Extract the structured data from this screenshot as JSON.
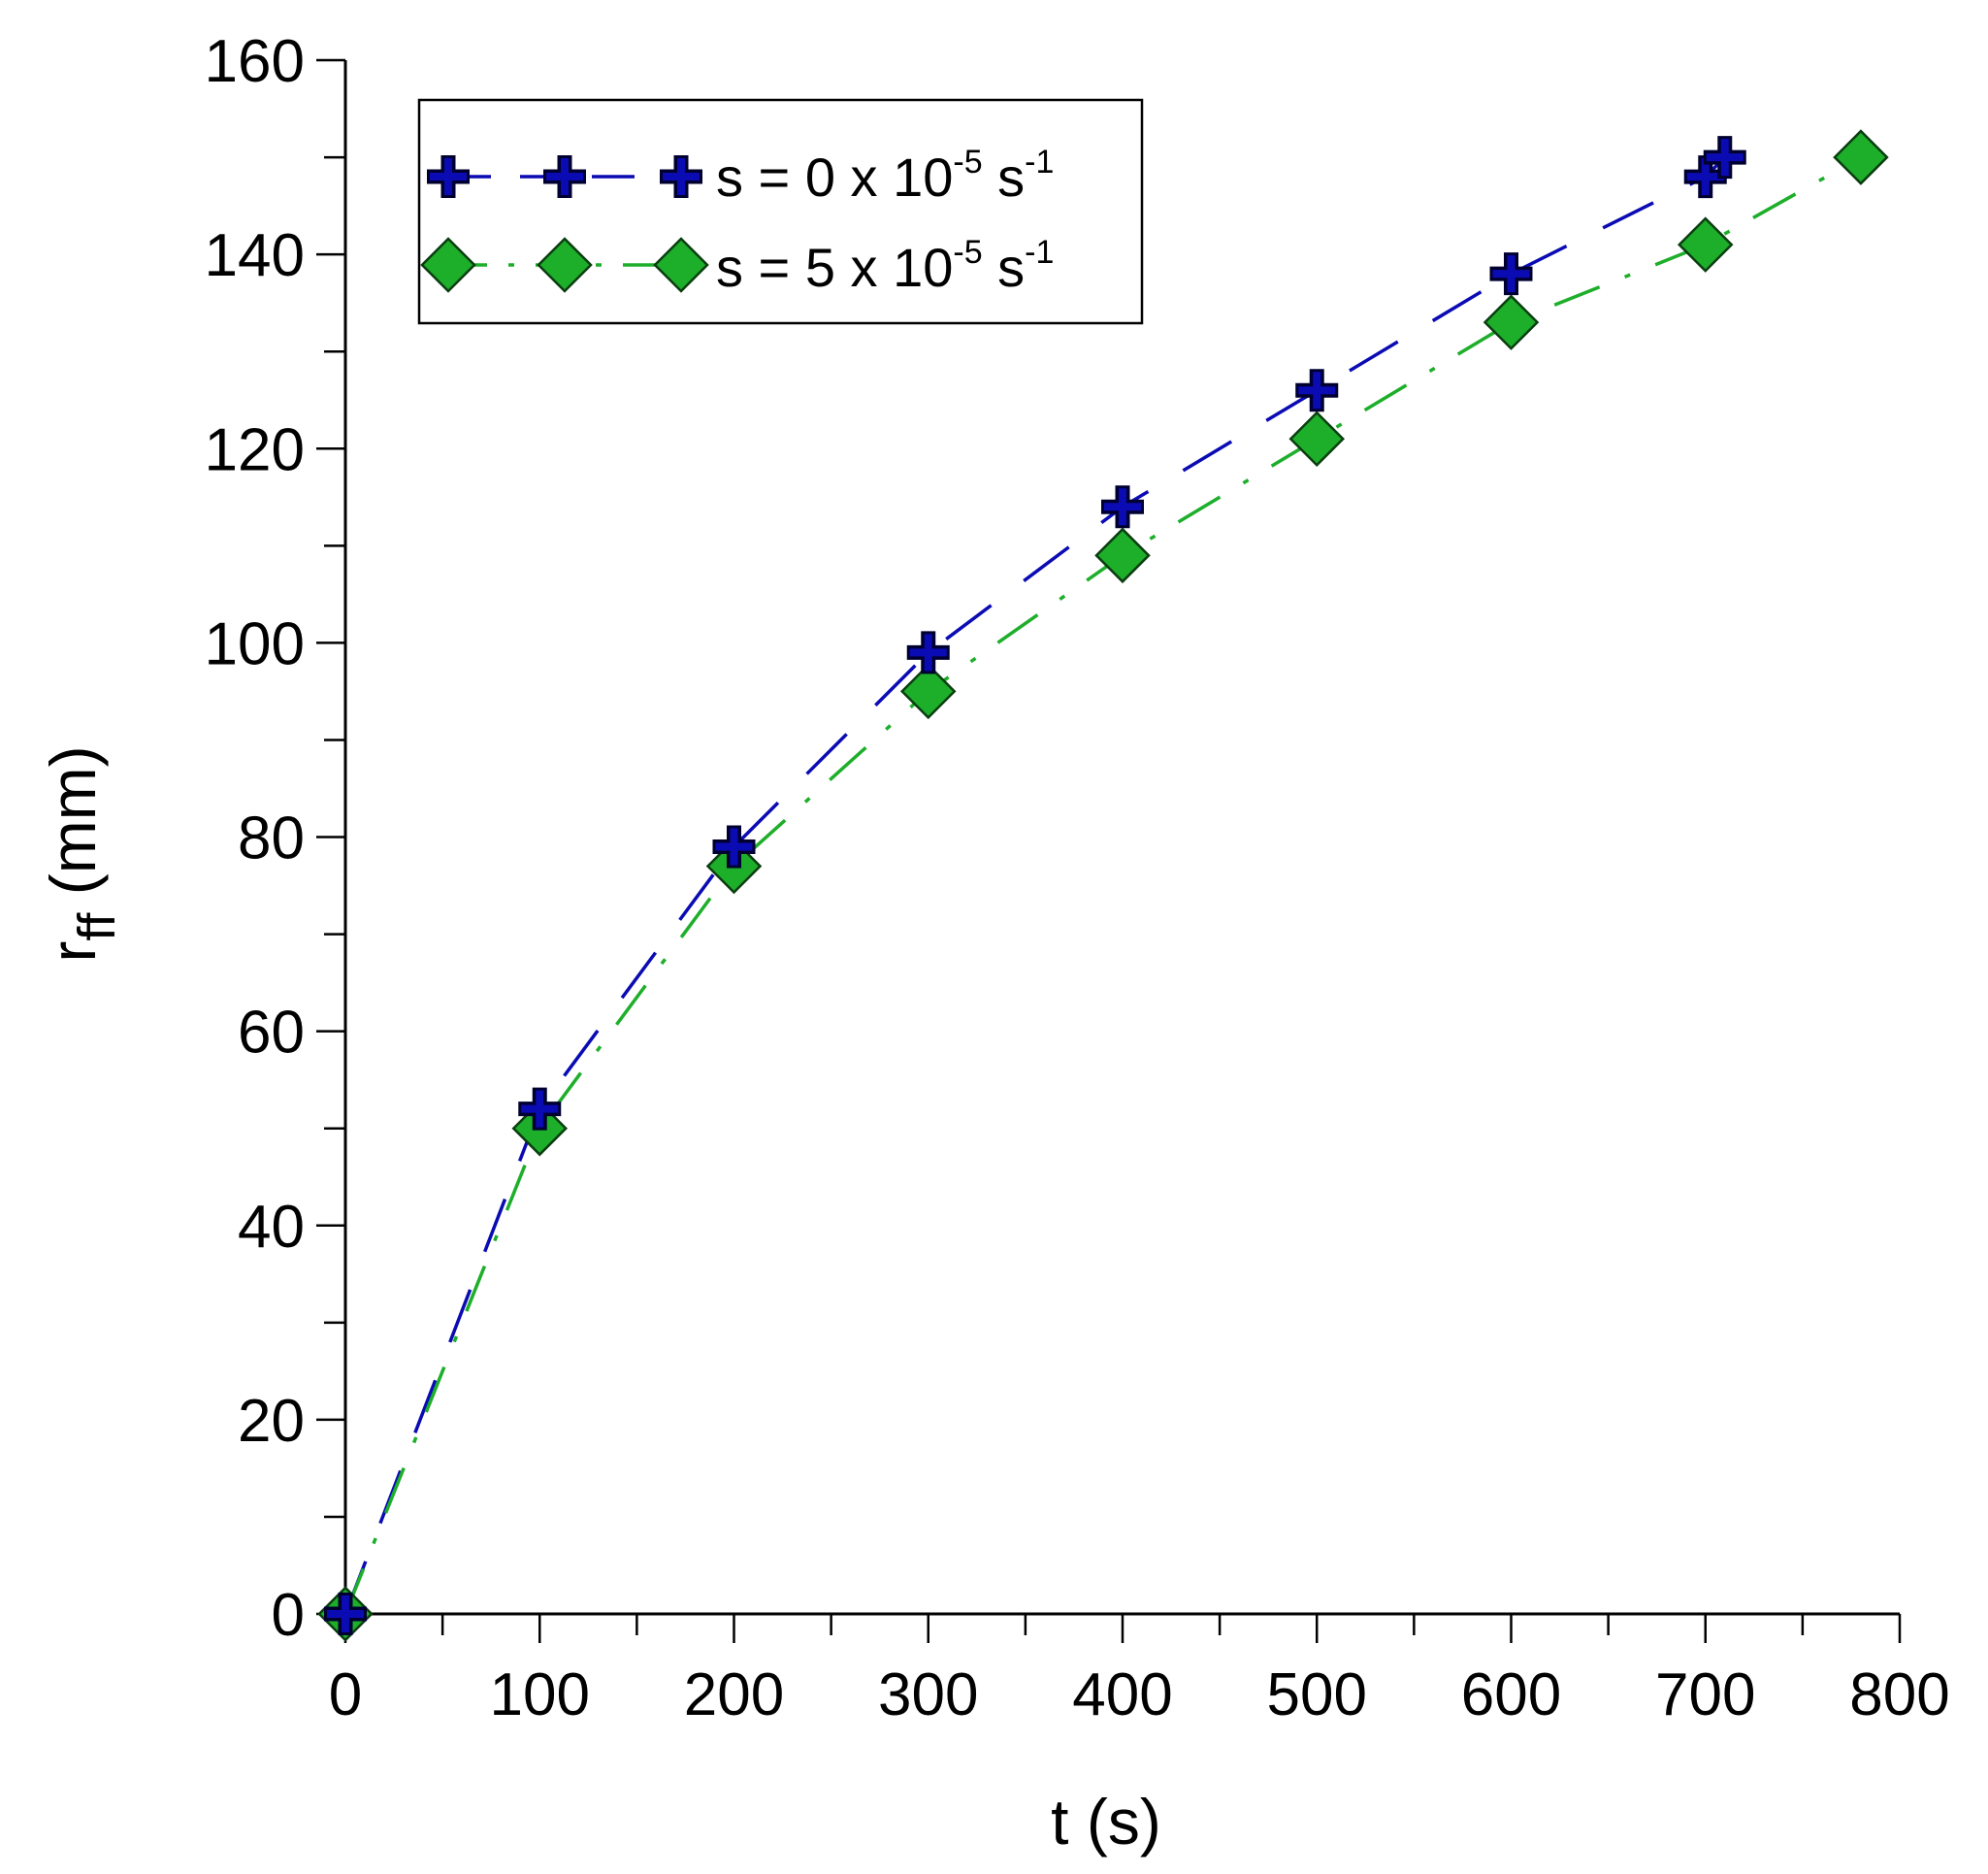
{
  "chart_data": {
    "type": "scatter",
    "title": "",
    "xlabel": "t (s)",
    "ylabel": {
      "main": "r",
      "sub": "ff",
      "unit": " (mm)"
    },
    "xlim": [
      0,
      800
    ],
    "ylim": [
      0,
      160
    ],
    "x_ticks": [
      0,
      100,
      200,
      300,
      400,
      500,
      600,
      700,
      800
    ],
    "y_ticks": [
      0,
      20,
      40,
      60,
      80,
      100,
      120,
      140,
      160
    ],
    "x_minor_step": 50,
    "y_minor_step": 10,
    "grid": false,
    "legend_position": "top-left",
    "series": [
      {
        "name": "s = 0 x 10-5 s-1",
        "label_parts": {
          "prefix": "s = 0 x 10",
          "exp": "-5",
          "mid": " s",
          "exp2": "-1"
        },
        "marker": "plus",
        "line": "dash",
        "color": "#0b0bb4",
        "x": [
          0,
          100,
          200,
          300,
          400,
          500,
          600,
          700,
          710
        ],
        "y": [
          0,
          52,
          79,
          99,
          114,
          126,
          138,
          148,
          150
        ]
      },
      {
        "name": "s = 5 x 10-5 s-1",
        "label_parts": {
          "prefix": "s = 5 x 10",
          "exp": "-5",
          "mid": " s",
          "exp2": "-1"
        },
        "marker": "diamond",
        "line": "dash-dot",
        "color": "#1dae2a",
        "x": [
          0,
          100,
          200,
          300,
          400,
          500,
          600,
          700,
          780
        ],
        "y": [
          0,
          50,
          77,
          95,
          109,
          121,
          133,
          141,
          150
        ]
      }
    ]
  }
}
